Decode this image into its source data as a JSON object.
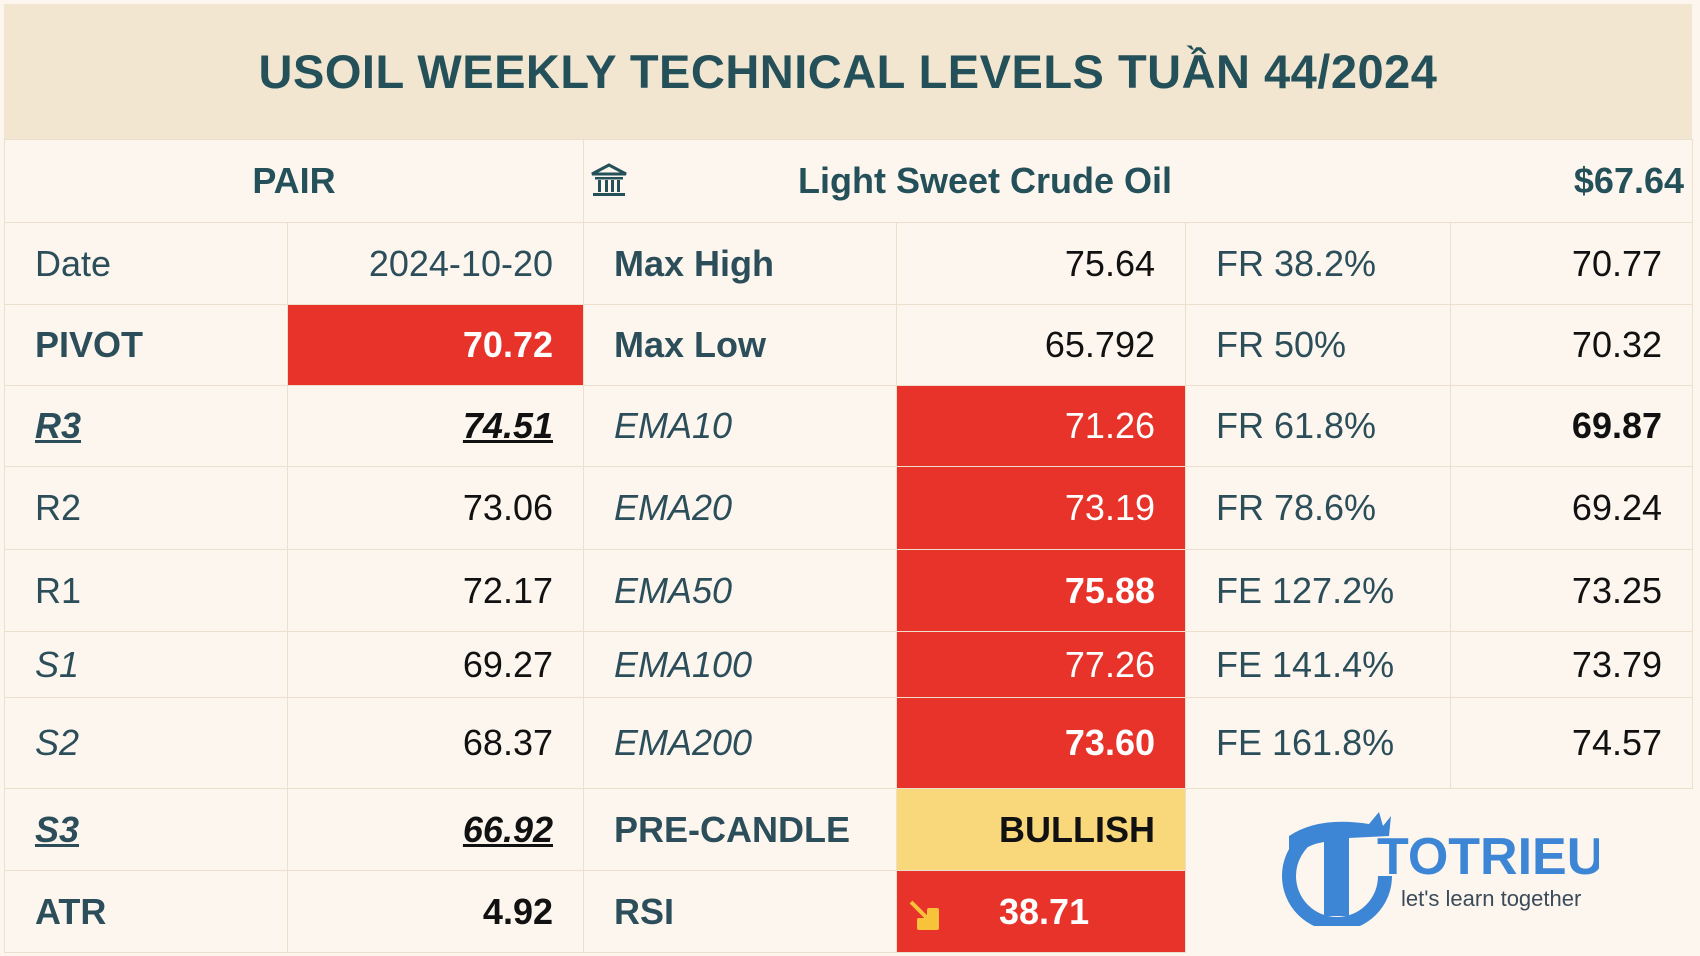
{
  "title": "USOIL WEEKLY TECHNICAL LEVELS TUẦN 44/2024",
  "pair": {
    "label": "PAIR",
    "name": "Light Sweet Crude Oil",
    "price": "$67.64"
  },
  "rows": [
    [
      "Date",
      "2024-10-20",
      "Max High",
      "75.64",
      "FR 38.2%",
      "70.77"
    ],
    [
      "PIVOT",
      "70.72",
      "Max Low",
      "65.792",
      "FR 50%",
      "70.32"
    ],
    [
      "R3",
      "74.51",
      "EMA10",
      "71.26",
      "FR 61.8%",
      "69.87"
    ],
    [
      "R2",
      "73.06",
      "EMA20",
      "73.19",
      "FR 78.6%",
      "69.24"
    ],
    [
      "R1",
      "72.17",
      "EMA50",
      "75.88",
      "FE 127.2%",
      "73.25"
    ],
    [
      "S1",
      "69.27",
      "EMA100",
      "77.26",
      "FE 141.4%",
      "73.79"
    ],
    [
      "S2",
      "68.37",
      "EMA200",
      "73.60",
      "FE 161.8%",
      "74.57"
    ],
    [
      "S3",
      "66.92",
      "PRE-CANDLE",
      "BULLISH"
    ],
    [
      "ATR",
      "4.92",
      "RSI",
      "38.71"
    ]
  ],
  "logo": {
    "brand": "TOTRIEU",
    "tagline": "let's learn together"
  }
}
